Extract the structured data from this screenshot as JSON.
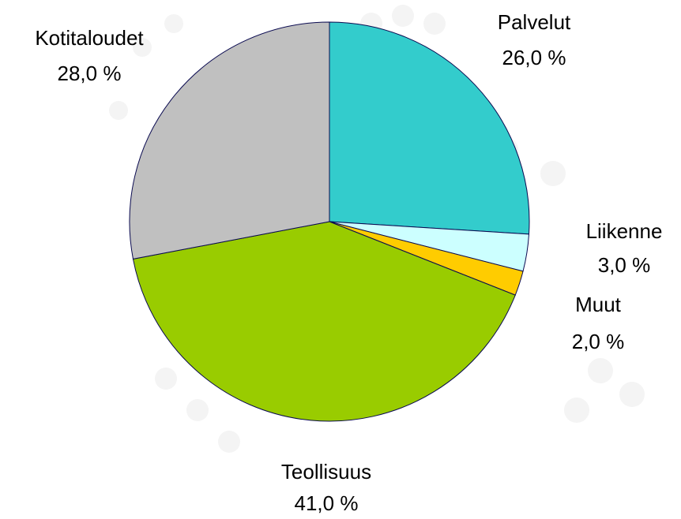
{
  "chart_data": {
    "type": "pie",
    "categories": [
      "Palvelut",
      "Liikenne",
      "Muut",
      "Teollisuus",
      "Kotitaloudet"
    ],
    "values": [
      26,
      3,
      2,
      41,
      28
    ],
    "value_labels": [
      "26,0 %",
      "3,0 %",
      "2,0 %",
      "41,0 %",
      "28,0 %"
    ],
    "colors": [
      "#33cccc",
      "#ccffff",
      "#ffcc00",
      "#99cc00",
      "#c0c0c0"
    ]
  }
}
